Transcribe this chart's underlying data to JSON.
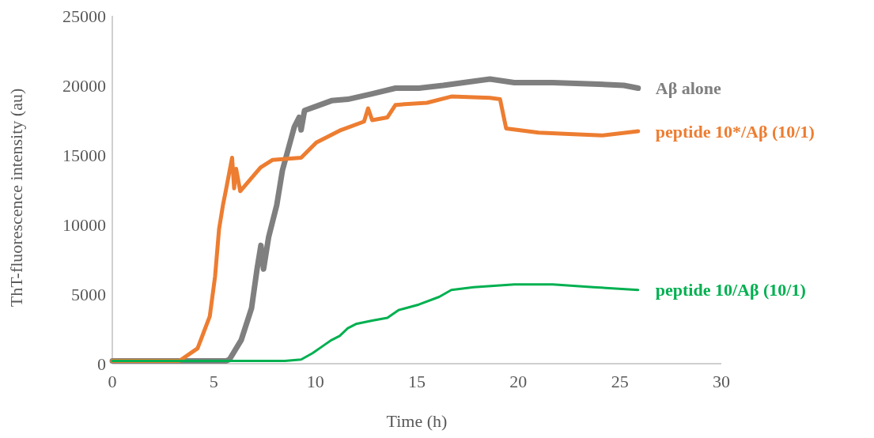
{
  "chart_data": {
    "type": "line",
    "xlabel": "Time (h)",
    "ylabel": "ThT-fluorescence intensity (au)",
    "xlim": [
      0,
      30
    ],
    "xticks": [
      0,
      5,
      10,
      15,
      20,
      25,
      30
    ],
    "ylim": [
      0,
      25000
    ],
    "yticks": [
      0,
      5000,
      10000,
      15000,
      20000,
      25000
    ],
    "grid": false,
    "legend": false,
    "marker": "none",
    "line_style": "solid",
    "series": [
      {
        "name": "Aβ alone",
        "color": "#7f7f7f",
        "x": [
          0,
          3,
          5.6,
          5.77,
          6.35,
          6.86,
          7.13,
          7.32,
          7.45,
          7.7,
          8.1,
          8.38,
          8.7,
          8.96,
          9.2,
          9.3,
          9.47,
          10.05,
          10.8,
          11.6,
          12.8,
          13.95,
          15.1,
          16.3,
          17.8,
          18.6,
          19.8,
          21.7,
          23.7,
          25.2,
          25.9
        ],
        "values": [
          200,
          200,
          200,
          300,
          1700,
          4000,
          6800,
          8500,
          6800,
          9100,
          11400,
          13900,
          15600,
          17000,
          17700,
          16800,
          18200,
          18500,
          18900,
          19000,
          19400,
          19800,
          19800,
          20000,
          20300,
          20450,
          20200,
          20200,
          20100,
          20000,
          19800
        ]
      },
      {
        "name": "peptide 10*/Aβ (10/1)",
        "color": "#ed7d31",
        "x": [
          0,
          3.3,
          4.2,
          4.8,
          5.06,
          5.26,
          5.45,
          5.6,
          5.9,
          6.0,
          6.1,
          6.3,
          7.3,
          7.9,
          9.3,
          10.05,
          11.2,
          12.4,
          12.6,
          12.8,
          13.55,
          13.95,
          15.5,
          16.7,
          18.6,
          19.1,
          19.4,
          21,
          22.5,
          24.1,
          25.9
        ],
        "values": [
          200,
          200,
          1100,
          3400,
          6250,
          9700,
          11400,
          12500,
          14800,
          12600,
          14000,
          12400,
          14100,
          14650,
          14800,
          15900,
          16750,
          17400,
          18350,
          17500,
          17700,
          18600,
          18750,
          19200,
          19100,
          19000,
          16900,
          16600,
          16500,
          16400,
          16700
        ]
      },
      {
        "name": "peptide 10/Aβ (10/1)",
        "color": "#00b050",
        "x": [
          0,
          8.5,
          9.3,
          9.86,
          10.4,
          10.8,
          11.2,
          11.6,
          12.0,
          12.8,
          13.55,
          14.1,
          15.1,
          16.1,
          16.7,
          17.8,
          19.8,
          21.7,
          23.7,
          25.9
        ],
        "values": [
          200,
          200,
          300,
          750,
          1300,
          1700,
          2000,
          2550,
          2850,
          3100,
          3300,
          3850,
          4250,
          4800,
          5300,
          5500,
          5700,
          5700,
          5500,
          5300
        ]
      }
    ]
  }
}
